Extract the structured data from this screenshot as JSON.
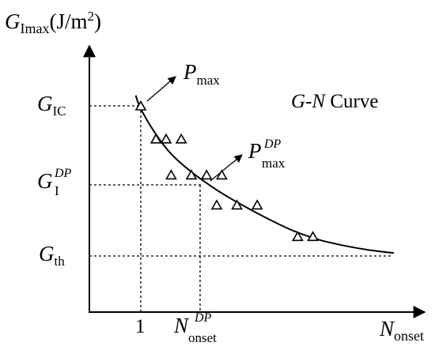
{
  "chart_data": {
    "type": "scatter",
    "title": "G-N Curve",
    "title_parts": {
      "g": "G",
      "dash": "-",
      "n": "N",
      "rest": " Curve"
    },
    "y_axis": {
      "main": "G",
      "sub": "Imax",
      "unit": "(J/m",
      "unit_sup": "2",
      "unit_close": ")"
    },
    "x_axis": {
      "main": "N",
      "sub": "onset"
    },
    "y_levels": [
      {
        "id": "G_IC",
        "main": "G",
        "sub": "IC",
        "sup": ""
      },
      {
        "id": "G_I_DP",
        "main": "G",
        "sub": "I",
        "sup": "DP"
      },
      {
        "id": "G_th",
        "main": "G",
        "sub": "th",
        "sup": ""
      }
    ],
    "x_ticks": [
      {
        "id": "one",
        "main": "1",
        "sub": "",
        "sup": ""
      },
      {
        "id": "N_onset_DP",
        "main": "N",
        "sub": "onset",
        "sup": "DP"
      }
    ],
    "annotations": [
      {
        "id": "P_max",
        "main": "P",
        "sub": "max",
        "sup": ""
      },
      {
        "id": "P_max_DP",
        "main": "P",
        "sub": "max",
        "sup": "DP"
      }
    ],
    "series": [
      {
        "marker": "open-triangle",
        "points": [
          {
            "x": 1.0,
            "y": 1.0
          },
          {
            "x": 1.3,
            "y": 0.78
          },
          {
            "x": 1.5,
            "y": 0.78
          },
          {
            "x": 1.8,
            "y": 0.78
          },
          {
            "x": 1.6,
            "y": 0.54
          },
          {
            "x": 2.0,
            "y": 0.54
          },
          {
            "x": 2.3,
            "y": 0.54
          },
          {
            "x": 2.6,
            "y": 0.54
          },
          {
            "x": 2.5,
            "y": 0.34
          },
          {
            "x": 2.9,
            "y": 0.34
          },
          {
            "x": 3.3,
            "y": 0.34
          },
          {
            "x": 4.1,
            "y": 0.13
          },
          {
            "x": 4.4,
            "y": 0.13
          }
        ]
      }
    ],
    "fit_curve": {
      "x": [
        0.9,
        1.0,
        1.3,
        1.6,
        2.0,
        2.5,
        3.0,
        3.5,
        4.0,
        4.5,
        5.0,
        5.5,
        6.0
      ],
      "y": [
        1.07,
        0.98,
        0.81,
        0.68,
        0.56,
        0.44,
        0.34,
        0.25,
        0.17,
        0.11,
        0.07,
        0.04,
        0.02
      ]
    },
    "grid": false,
    "legend": "none"
  }
}
